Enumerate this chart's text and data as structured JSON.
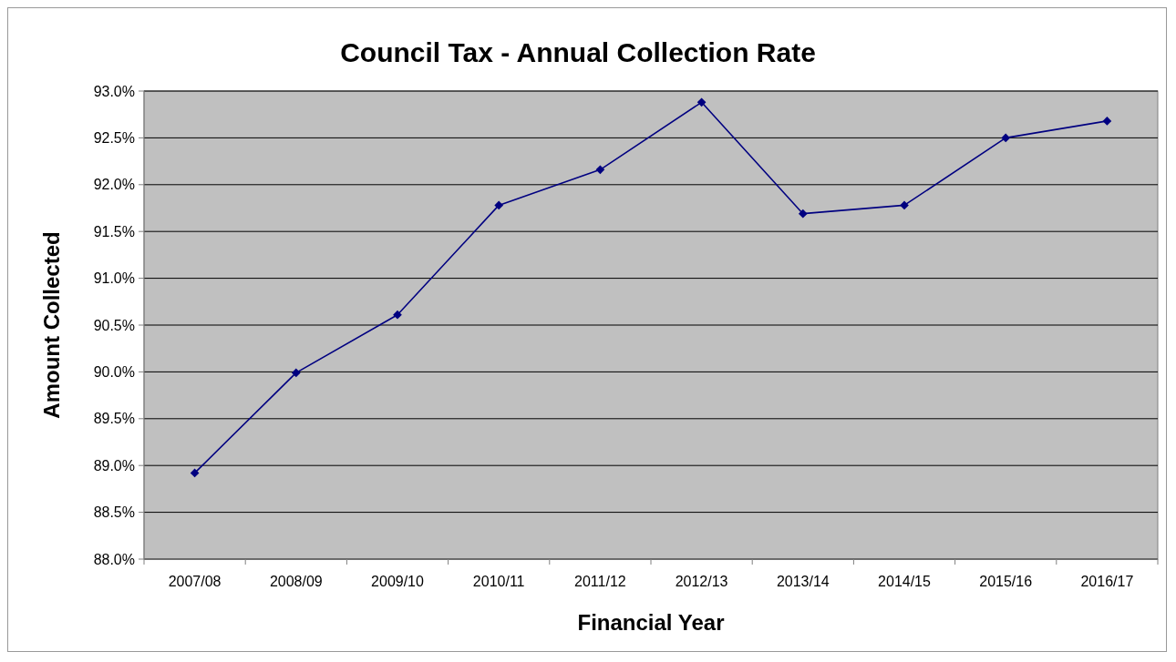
{
  "chart_data": {
    "type": "line",
    "title": "Council Tax - Annual Collection Rate",
    "xlabel": "Financial Year",
    "ylabel": "Amount Collected",
    "categories": [
      "2007/08",
      "2008/09",
      "2009/10",
      "2010/11",
      "2011/12",
      "2012/13",
      "2013/14",
      "2014/15",
      "2015/16",
      "2016/17"
    ],
    "series": [
      {
        "color": "#000080",
        "values": [
          88.92,
          89.99,
          90.61,
          91.78,
          92.16,
          92.88,
          91.69,
          91.78,
          92.5,
          92.68
        ]
      }
    ],
    "ylim": [
      88,
      93
    ],
    "yticks": [
      {
        "value": 88,
        "label": "88.0%"
      },
      {
        "value": 88.5,
        "label": "88.5%"
      },
      {
        "value": 89,
        "label": "89.0%"
      },
      {
        "value": 89.5,
        "label": "89.5%"
      },
      {
        "value": 90,
        "label": "90.0%"
      },
      {
        "value": 90.5,
        "label": "90.5%"
      },
      {
        "value": 91,
        "label": "91.0%"
      },
      {
        "value": 91.5,
        "label": "91.5%"
      },
      {
        "value": 92,
        "label": "92.0%"
      },
      {
        "value": 92.5,
        "label": "92.5%"
      },
      {
        "value": 93,
        "label": "93.0%"
      }
    ],
    "grid": "y",
    "marker": "diamond",
    "line_style": "solid"
  }
}
